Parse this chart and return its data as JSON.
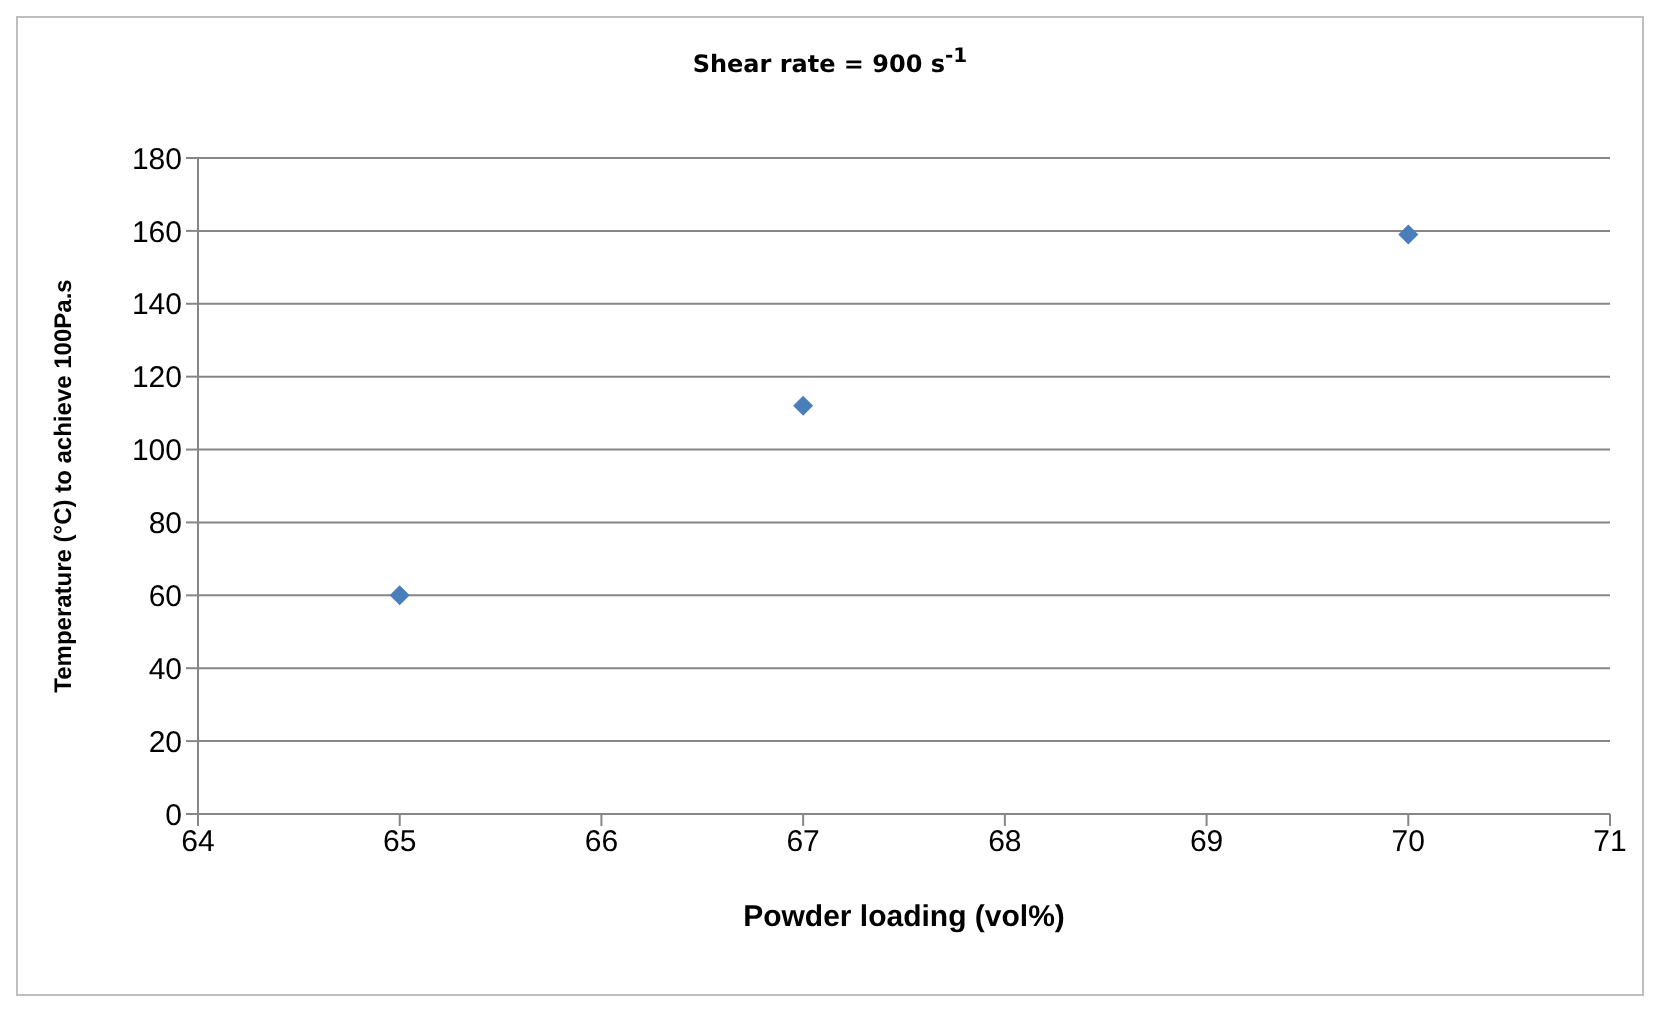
{
  "chart_data": {
    "type": "scatter",
    "title": "Shear rate = 900 s$^{-1}$",
    "xlabel": "Powder loading (vol%)",
    "ylabel": "Temperature (°C) to achieve 100Pa.s",
    "x": [
      65,
      67,
      70
    ],
    "series": [
      {
        "color": "#4a7ebb",
        "values": [
          60,
          112,
          159
        ]
      }
    ],
    "xlim": [
      64,
      71
    ],
    "xticks": [
      64,
      65,
      66,
      67,
      68,
      69,
      70,
      71
    ],
    "ylim": [
      0,
      180
    ],
    "yticks": [
      0,
      20,
      40,
      60,
      80,
      100,
      120,
      140,
      160,
      180
    ],
    "grid": "y",
    "marker": "diamond"
  }
}
